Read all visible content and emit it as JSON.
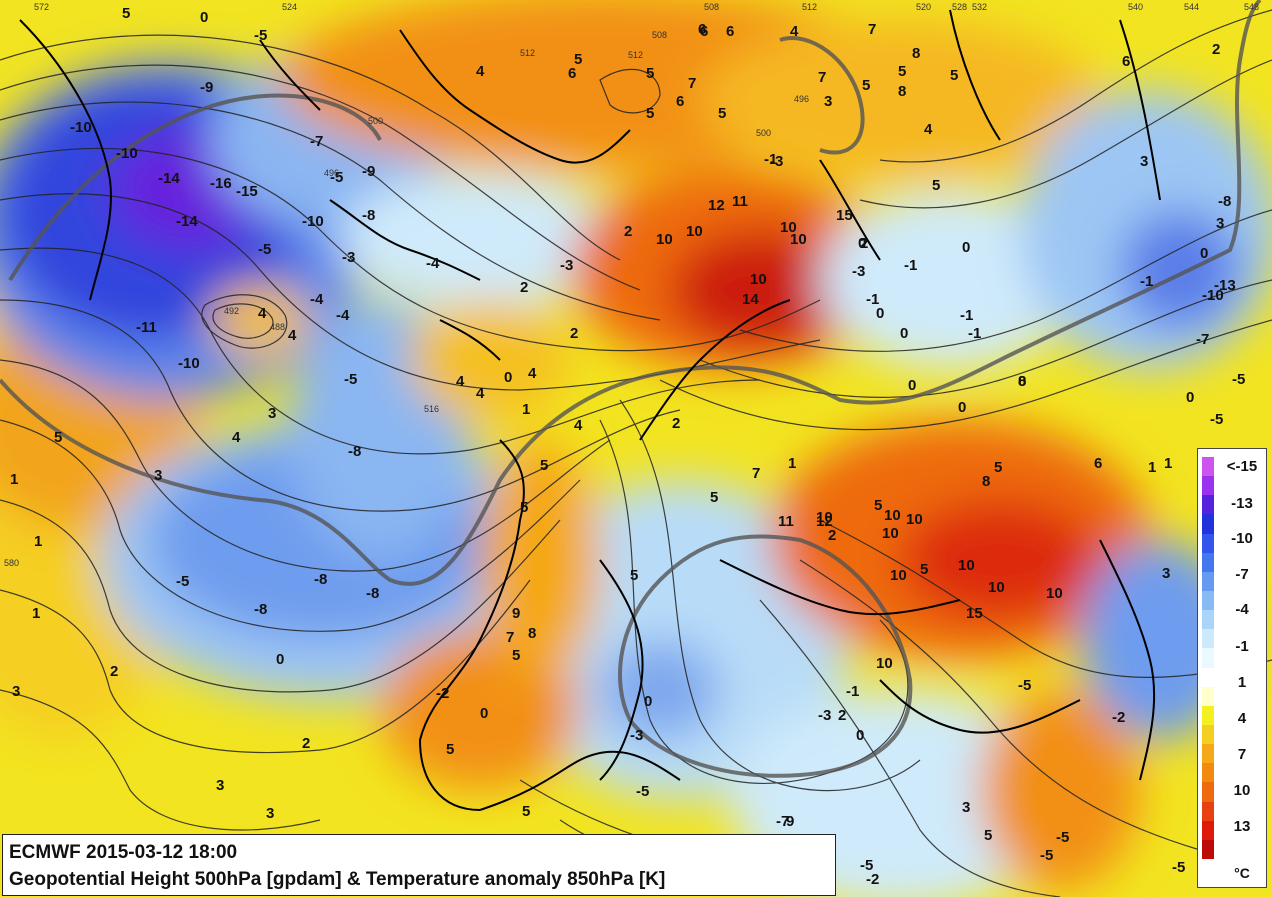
{
  "caption": {
    "line1": "ECMWF 2015-03-12 18:00",
    "line2": "Geopotential Height 500hPa [gpdam] & Temperature anomaly 850hPa [K]"
  },
  "legend": {
    "unit": "°C",
    "ticks": [
      "<-15",
      "-13",
      "-10",
      "-7",
      "-4",
      "-1",
      "1",
      "4",
      "7",
      "10",
      "13"
    ],
    "colors": [
      "#cc55ee",
      "#9933ee",
      "#5522dd",
      "#2233dd",
      "#3355ee",
      "#4477ee",
      "#6699f0",
      "#88bbf5",
      "#aad4f8",
      "#cceafb",
      "#eaf8ff",
      "#ffffff",
      "#ffffcc",
      "#f2f020",
      "#f5cf20",
      "#f5a818",
      "#f28a10",
      "#ee6a10",
      "#e84010",
      "#dd1a0c",
      "#bb0a08"
    ]
  },
  "colors": {
    "warm_strong": "#dd2a10",
    "warm": "#f29018",
    "warm_light": "#f5c020",
    "neutral_warm": "#f0ee30",
    "cold_light": "#cfeafa",
    "cold": "#7fb2f0",
    "cold_strong": "#3344dd",
    "cold_extreme": "#6622dd",
    "contour": "#222222",
    "thick_contour": "#555555"
  },
  "anomaly_labels": [
    "5",
    "0",
    "-5",
    "-9",
    "-10",
    "-14",
    "-16",
    "-15",
    "-14",
    "-10",
    "-5",
    "-11",
    "-10",
    "-7",
    "-5",
    "-9",
    "-10",
    "-8",
    "-3",
    "-4",
    "-4",
    "-5",
    "4",
    "4",
    "3",
    "5",
    "4",
    "3",
    "1",
    "1",
    "1",
    "2",
    "3",
    "-8",
    "-5",
    "-8",
    "-8",
    "-8",
    "0",
    "2",
    "3",
    "3",
    "5",
    "-4",
    "2",
    "4",
    "4",
    "0",
    "4",
    "4",
    "1",
    "2",
    "2",
    "-3",
    "-3",
    "6",
    "5",
    "5",
    "7",
    "4",
    "6",
    "5",
    "6",
    "6",
    "5",
    "6",
    "7",
    "5",
    "3",
    "7",
    "5",
    "8",
    "8",
    "5",
    "4",
    "5",
    "4",
    "3",
    "6",
    "2",
    "10",
    "10",
    "12",
    "11",
    "10",
    "10",
    "10",
    "14",
    "15",
    "0",
    "-1",
    "-3",
    "-1",
    "-1",
    "0",
    "0",
    "-1",
    "-1",
    "0",
    "0",
    "2",
    "1",
    "1",
    "3",
    "0",
    "-13",
    "-10",
    "-1",
    "-7",
    "-5",
    "-5",
    "0",
    "2",
    "-8",
    "0",
    "8",
    "5",
    "8",
    "5",
    "10",
    "10",
    "12",
    "10",
    "2",
    "10",
    "11",
    "10",
    "5",
    "10",
    "10",
    "10",
    "15",
    "10",
    "-1",
    "-3",
    "2",
    "0",
    "0",
    "-3",
    "-7",
    "-5",
    "-2",
    "0",
    "5",
    "9",
    "8",
    "5",
    "7",
    "5",
    "5",
    "6",
    "7",
    "5",
    "0",
    "1",
    "3",
    "5",
    "3",
    "-5",
    "-5",
    "-5",
    "-5",
    "-2",
    "9",
    "5",
    "-5",
    "-2",
    "6",
    "5",
    "0"
  ],
  "height_labels": [
    "572",
    "524",
    "512",
    "508",
    "512",
    "508",
    "512",
    "496",
    "500",
    "496",
    "500",
    "516",
    "492",
    "488",
    "540",
    "544",
    "548",
    "528",
    "532",
    "520",
    "580"
  ]
}
